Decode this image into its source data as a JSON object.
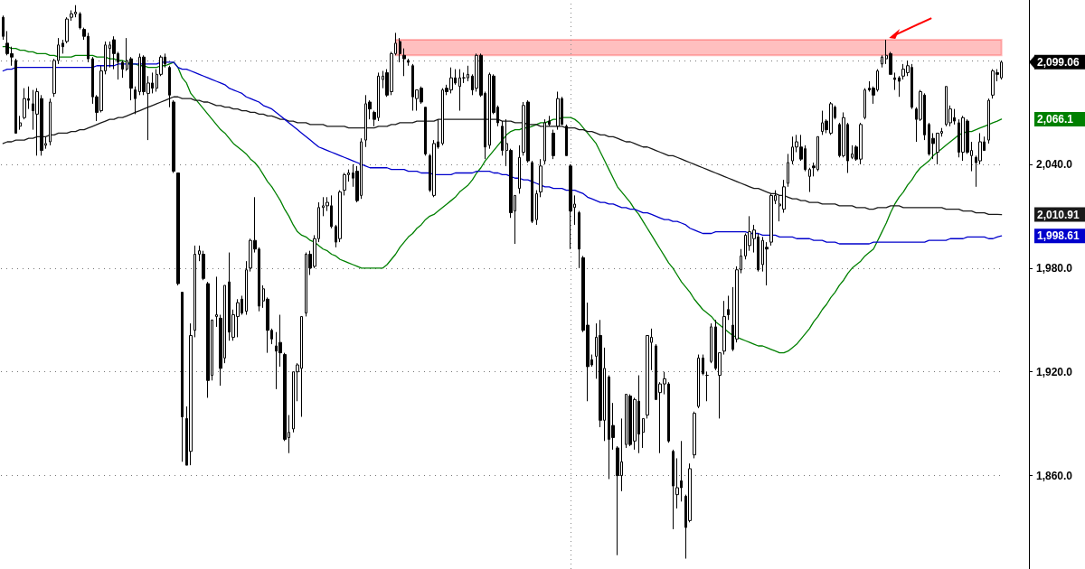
{
  "chart_data": {
    "type": "candlestick",
    "color": "#000000",
    "grid": "y",
    "tick_labels": "y",
    "line_style": "solid",
    "ylim": [
      1806,
      2135
    ],
    "yticks": [
      {
        "value": 1860,
        "label": "1,860.0"
      },
      {
        "value": 1920,
        "label": "1,920.0"
      },
      {
        "value": 1980,
        "label": "1,980.0"
      },
      {
        "value": 2040,
        "label": "2,040.0"
      },
      {
        "value": 2100,
        "label": null
      }
    ],
    "categories": [
      null,
      null,
      null,
      null,
      null,
      null,
      null,
      null,
      null,
      null,
      null,
      null,
      null,
      null,
      null,
      null,
      null,
      null,
      null,
      null,
      null,
      null,
      null,
      null,
      null,
      null,
      null,
      null,
      null,
      null,
      null,
      null,
      null,
      null,
      null,
      null,
      null,
      null,
      null,
      null,
      null,
      null,
      null,
      null,
      null,
      null,
      null,
      null,
      null,
      null,
      null,
      null,
      null,
      null,
      null,
      null,
      null,
      null,
      null,
      null,
      null,
      null,
      null,
      null,
      null,
      null,
      null,
      null,
      null,
      null,
      null,
      null,
      null,
      null,
      null,
      null,
      null,
      null,
      null,
      null,
      null,
      null,
      null,
      null,
      null,
      null,
      null,
      null,
      null,
      null,
      null,
      null,
      null,
      null,
      null,
      null,
      null,
      null,
      null,
      null,
      null,
      null,
      null,
      null,
      null,
      null,
      null,
      null,
      null,
      null,
      null,
      null,
      null,
      null,
      null,
      null,
      null,
      null,
      null,
      null,
      null,
      null,
      null,
      null,
      null,
      null,
      null,
      null,
      null,
      null,
      null,
      null,
      null,
      null,
      null,
      null,
      null,
      null,
      null,
      null,
      null,
      null,
      null,
      null,
      null,
      null,
      null,
      null,
      null,
      null,
      null,
      null,
      null,
      null,
      null,
      null,
      null,
      null,
      null,
      null,
      null,
      null,
      null,
      null,
      null,
      null,
      null,
      null,
      null,
      null,
      null,
      null,
      null,
      null,
      null,
      null,
      null,
      null,
      null,
      null,
      null,
      null,
      null,
      null,
      null,
      null,
      null,
      null,
      null,
      null,
      null,
      null,
      null,
      null,
      null,
      null,
      null,
      null,
      null,
      null,
      null,
      null,
      null,
      null,
      null,
      null,
      null,
      null,
      null,
      null,
      null,
      null,
      null,
      null,
      null,
      null,
      null,
      null,
      null,
      null,
      null,
      null,
      null,
      null,
      null,
      null,
      null,
      null,
      null,
      null,
      null,
      null,
      null,
      null,
      null
    ],
    "ohlc": [
      [
        2125,
        2126,
        2112,
        2114
      ],
      [
        2110,
        2117,
        2103,
        2104
      ],
      [
        2104,
        2108,
        2097,
        2102
      ],
      [
        2100,
        2101,
        2058,
        2058
      ],
      [
        2062,
        2068,
        2060,
        2064
      ],
      [
        2067,
        2084,
        2066,
        2078
      ],
      [
        2078,
        2085,
        2072,
        2077
      ],
      [
        2075,
        2083,
        2060,
        2071
      ],
      [
        2069,
        2084,
        2045,
        2082
      ],
      [
        2078,
        2080,
        2045,
        2048
      ],
      [
        2051,
        2056,
        2049,
        2052
      ],
      [
        2053,
        2078,
        2051,
        2076
      ],
      [
        2081,
        2101,
        2079,
        2100
      ],
      [
        2100,
        2113,
        2098,
        2109
      ],
      [
        2110,
        2112,
        2104,
        2108
      ],
      [
        2111,
        2125,
        2110,
        2124
      ],
      [
        2125,
        2129,
        2123,
        2127
      ],
      [
        2127,
        2132,
        2125,
        2128
      ],
      [
        2127,
        2128,
        2118,
        2119
      ],
      [
        2118,
        2119,
        2112,
        2114
      ],
      [
        2114,
        2116,
        2099,
        2101
      ],
      [
        2101,
        2102,
        2075,
        2079
      ],
      [
        2079,
        2080,
        2065,
        2070
      ],
      [
        2071,
        2097,
        2070,
        2094
      ],
      [
        2094,
        2111,
        2092,
        2109
      ],
      [
        2107,
        2111,
        2096,
        2109
      ],
      [
        2112,
        2114,
        2095,
        2104
      ],
      [
        2104,
        2105,
        2089,
        2099
      ],
      [
        2099,
        2100,
        2090,
        2095
      ],
      [
        2095,
        2113,
        2094,
        2100
      ],
      [
        2101,
        2102,
        2077,
        2084
      ],
      [
        2083,
        2085,
        2069,
        2078
      ],
      [
        2082,
        2104,
        2080,
        2102
      ],
      [
        2102,
        2103,
        2080,
        2082
      ],
      [
        2081,
        2091,
        2054,
        2087
      ],
      [
        2087,
        2093,
        2081,
        2084
      ],
      [
        2084,
        2095,
        2082,
        2092
      ],
      [
        2092,
        2103,
        2091,
        2102
      ],
      [
        2102,
        2104,
        2096,
        2098
      ],
      [
        2096,
        2097,
        2073,
        2080
      ],
      [
        2076,
        2077,
        2035,
        2036
      ],
      [
        2035,
        2035,
        1970,
        1971
      ],
      [
        1966,
        1966,
        1868,
        1894
      ],
      [
        1893,
        1900,
        1866,
        1866
      ],
      [
        1874,
        1948,
        1866,
        1941
      ],
      [
        1944,
        1993,
        1940,
        1988
      ],
      [
        1988,
        1993,
        1984,
        1990
      ],
      [
        1988,
        1990,
        1973,
        1974
      ],
      [
        1971,
        1972,
        1905,
        1915
      ],
      [
        1918,
        1950,
        1915,
        1950
      ],
      [
        1952,
        1975,
        1946,
        1953
      ],
      [
        1951,
        1953,
        1912,
        1922
      ],
      [
        1928,
        1970,
        1925,
        1970
      ],
      [
        1972,
        1989,
        1938,
        1943
      ],
      [
        1940,
        1956,
        1938,
        1953
      ],
      [
        1952,
        1962,
        1940,
        1960
      ],
      [
        1962,
        1964,
        1953,
        1954
      ],
      [
        1955,
        1984,
        1953,
        1979
      ],
      [
        1980,
        1997,
        1978,
        1996
      ],
      [
        1996,
        2021,
        1989,
        1991
      ],
      [
        1991,
        1992,
        1955,
        1958
      ],
      [
        1961,
        1970,
        1957,
        1968
      ],
      [
        1962,
        1963,
        1931,
        1944
      ],
      [
        1944,
        1945,
        1936,
        1939
      ],
      [
        1935,
        1943,
        1910,
        1932
      ],
      [
        1937,
        1953,
        1923,
        1931
      ],
      [
        1930,
        1931,
        1880,
        1881
      ],
      [
        1882,
        1895,
        1873,
        1885
      ],
      [
        1887,
        1920,
        1885,
        1920
      ],
      [
        1920,
        1925,
        1903,
        1924
      ],
      [
        1922,
        1952,
        1894,
        1952
      ],
      [
        1954,
        1989,
        1952,
        1988
      ],
      [
        1988,
        1990,
        1976,
        1980
      ],
      [
        1981,
        1999,
        1980,
        1997
      ],
      [
        1997,
        2018,
        1995,
        2015
      ],
      [
        2015,
        2021,
        2010,
        2016
      ],
      [
        2016,
        2021,
        2013,
        2018
      ],
      [
        2016,
        2022,
        2003,
        2004
      ],
      [
        2004,
        2005,
        1992,
        1995
      ],
      [
        1997,
        2025,
        1995,
        2024
      ],
      [
        2025,
        2035,
        2022,
        2034
      ],
      [
        2034,
        2037,
        2030,
        2035
      ],
      [
        2035,
        2040,
        2027,
        2032
      ],
      [
        2036,
        2039,
        2018,
        2019
      ],
      [
        2022,
        2055,
        2020,
        2053
      ],
      [
        2054,
        2080,
        2050,
        2075
      ],
      [
        2076,
        2077,
        2066,
        2072
      ],
      [
        2070,
        2071,
        2062,
        2066
      ],
      [
        2067,
        2093,
        2065,
        2091
      ],
      [
        2089,
        2094,
        2084,
        2091
      ],
      [
        2093,
        2095,
        2079,
        2080
      ],
      [
        2082,
        2105,
        2080,
        2104
      ],
      [
        2104,
        2116,
        2103,
        2110
      ],
      [
        2111,
        2113,
        2099,
        2104
      ],
      [
        2103,
        2107,
        2091,
        2101
      ],
      [
        2100,
        2101,
        2097,
        2099
      ],
      [
        2097,
        2098,
        2071,
        2079
      ],
      [
        2078,
        2083,
        2071,
        2083
      ],
      [
        2084,
        2085,
        2075,
        2076
      ],
      [
        2073,
        2073,
        2045,
        2046
      ],
      [
        2045,
        2046,
        2024,
        2025
      ],
      [
        2022,
        2054,
        2021,
        2052
      ],
      [
        2053,
        2066,
        2049,
        2050
      ],
      [
        2052,
        2084,
        2051,
        2083
      ],
      [
        2084,
        2086,
        2080,
        2082
      ],
      [
        2083,
        2096,
        2081,
        2090
      ],
      [
        2090,
        2095,
        2086,
        2087
      ],
      [
        2085,
        2095,
        2071,
        2090
      ],
      [
        2090,
        2093,
        2087,
        2090
      ],
      [
        2090,
        2097,
        2088,
        2092
      ],
      [
        2091,
        2092,
        2080,
        2083
      ],
      [
        2084,
        2104,
        2082,
        2103
      ],
      [
        2103,
        2104,
        2079,
        2080
      ],
      [
        2081,
        2082,
        2043,
        2050
      ],
      [
        2051,
        2093,
        2049,
        2092
      ],
      [
        2091,
        2092,
        2069,
        2070
      ],
      [
        2073,
        2074,
        2062,
        2064
      ],
      [
        2062,
        2065,
        2045,
        2048
      ],
      [
        2048,
        2066,
        2039,
        2052
      ],
      [
        2048,
        2049,
        2009,
        2012
      ],
      [
        2013,
        2022,
        1994,
        2022
      ],
      [
        2026,
        2051,
        2023,
        2044
      ],
      [
        2047,
        2076,
        2045,
        2074
      ],
      [
        2076,
        2077,
        2041,
        2042
      ],
      [
        2041,
        2042,
        2006,
        2007
      ],
      [
        2008,
        2025,
        2005,
        2023
      ],
      [
        2024,
        2043,
        2021,
        2039
      ],
      [
        2042,
        2066,
        2040,
        2064
      ],
      [
        2065,
        2068,
        2062,
        2063
      ],
      [
        2058,
        2060,
        2043,
        2045
      ],
      [
        2062,
        2082,
        2060,
        2078
      ],
      [
        2078,
        2079,
        2063,
        2063
      ],
      [
        2062,
        2063,
        2045,
        2045
      ],
      [
        2039,
        2040,
        1991,
        2013
      ],
      [
        2015,
        2022,
        2005,
        2017
      ],
      [
        2012,
        2013,
        1980,
        1991
      ],
      [
        1986,
        1987,
        1943,
        1944
      ],
      [
        1947,
        1960,
        1903,
        1923
      ],
      [
        1927,
        1930,
        1923,
        1924
      ],
      [
        1929,
        1948,
        1916,
        1940
      ],
      [
        1941,
        1950,
        1888,
        1892
      ],
      [
        1892,
        1934,
        1880,
        1922
      ],
      [
        1917,
        1918,
        1858,
        1881
      ],
      [
        1889,
        1902,
        1875,
        1882
      ],
      [
        1876,
        1877,
        1814,
        1860
      ],
      [
        1860,
        1893,
        1851,
        1868
      ],
      [
        1878,
        1907,
        1876,
        1907
      ],
      [
        1906,
        1907,
        1877,
        1878
      ],
      [
        1880,
        1905,
        1875,
        1904
      ],
      [
        1903,
        1918,
        1873,
        1884
      ],
      [
        1885,
        1893,
        1876,
        1893
      ],
      [
        1895,
        1941,
        1893,
        1941
      ],
      [
        1937,
        1945,
        1921,
        1940
      ],
      [
        1935,
        1936,
        1904,
        1904
      ],
      [
        1908,
        1914,
        1873,
        1913
      ],
      [
        1913,
        1920,
        1907,
        1916
      ],
      [
        1913,
        1914,
        1879,
        1880
      ],
      [
        1874,
        1875,
        1829,
        1854
      ],
      [
        1849,
        1870,
        1841,
        1853
      ],
      [
        1857,
        1880,
        1845,
        1853
      ],
      [
        1848,
        1849,
        1812,
        1830
      ],
      [
        1834,
        1867,
        1833,
        1864
      ],
      [
        1872,
        1897,
        1870,
        1896
      ],
      [
        1900,
        1930,
        1899,
        1928
      ],
      [
        1928,
        1930,
        1918,
        1919
      ],
      [
        1918,
        1920,
        1903,
        1918
      ],
      [
        1926,
        1948,
        1925,
        1946
      ],
      [
        1946,
        1950,
        1921,
        1922
      ],
      [
        1918,
        1931,
        1893,
        1931
      ],
      [
        1932,
        1961,
        1930,
        1952
      ],
      [
        1956,
        1964,
        1950,
        1953
      ],
      [
        1947,
        1969,
        1932,
        1933
      ],
      [
        1939,
        1981,
        1937,
        1979
      ],
      [
        1979,
        1991,
        1977,
        1987
      ],
      [
        1987,
        2000,
        1985,
        1999
      ],
      [
        1993,
        2010,
        1990,
        2001
      ],
      [
        1997,
        2005,
        1989,
        2002
      ],
      [
        1998,
        2000,
        1978,
        1979
      ],
      [
        1982,
        1998,
        1978,
        1996
      ],
      [
        1992,
        1995,
        1970,
        1991
      ],
      [
        1995,
        2023,
        1993,
        2022
      ],
      [
        2019,
        2025,
        2017,
        2022
      ],
      [
        2016,
        2022,
        2007,
        2017
      ],
      [
        2014,
        2031,
        2012,
        2027
      ],
      [
        2029,
        2046,
        2027,
        2041
      ],
      [
        2042,
        2056,
        2040,
        2050
      ],
      [
        2050,
        2057,
        2047,
        2053
      ],
      [
        2050,
        2057,
        2042,
        2043
      ],
      [
        2049,
        2051,
        2036,
        2037
      ],
      [
        2033,
        2038,
        2024,
        2037
      ],
      [
        2039,
        2041,
        2033,
        2038
      ],
      [
        2037,
        2056,
        2036,
        2056
      ],
      [
        2059,
        2071,
        2057,
        2064
      ],
      [
        2065,
        2066,
        2058,
        2060
      ],
      [
        2058,
        2076,
        2057,
        2075
      ],
      [
        2073,
        2074,
        2066,
        2067
      ],
      [
        2063,
        2064,
        2044,
        2045
      ],
      [
        2045,
        2070,
        2044,
        2067
      ],
      [
        2063,
        2064,
        2035,
        2042
      ],
      [
        2044,
        2051,
        2043,
        2046
      ],
      [
        2050,
        2051,
        2042,
        2043
      ],
      [
        2043,
        2064,
        2040,
        2063
      ],
      [
        2067,
        2084,
        2066,
        2083
      ],
      [
        2084,
        2088,
        2082,
        2083
      ],
      [
        2084,
        2085,
        2075,
        2080
      ],
      [
        2083,
        2095,
        2082,
        2094
      ],
      [
        2098,
        2103,
        2096,
        2102
      ],
      [
        2101,
        2112,
        2098,
        2103
      ],
      [
        2104,
        2105,
        2092,
        2092
      ],
      [
        2090,
        2093,
        2083,
        2089
      ],
      [
        2090,
        2091,
        2079,
        2088
      ],
      [
        2091,
        2098,
        2089,
        2095
      ],
      [
        2093,
        2100,
        2091,
        2097
      ],
      [
        2096,
        2098,
        2072,
        2073
      ],
      [
        2072,
        2073,
        2053,
        2066
      ],
      [
        2066,
        2083,
        2065,
        2082
      ],
      [
        2080,
        2081,
        2054,
        2057
      ],
      [
        2063,
        2064,
        2045,
        2046
      ],
      [
        2055,
        2058,
        2043,
        2052
      ],
      [
        2047,
        2058,
        2040,
        2058
      ],
      [
        2058,
        2061,
        2056,
        2059
      ],
      [
        2063,
        2085,
        2062,
        2085
      ],
      [
        2064,
        2074,
        2062,
        2072
      ],
      [
        2067,
        2072,
        2063,
        2065
      ],
      [
        2064,
        2066,
        2044,
        2047
      ],
      [
        2047,
        2068,
        2042,
        2067
      ],
      [
        2065,
        2066,
        2046,
        2047
      ],
      [
        2045,
        2053,
        2036,
        2048
      ],
      [
        2044,
        2045,
        2027,
        2041
      ],
      [
        2042,
        2058,
        2040,
        2053
      ],
      [
        2053,
        2056,
        2048,
        2048
      ],
      [
        2054,
        2078,
        2052,
        2077
      ],
      [
        2080,
        2095,
        2078,
        2094
      ],
      [
        2093,
        2095,
        2088,
        2092
      ],
      [
        2090,
        2100,
        2089,
        2099.06
      ]
    ],
    "series": [
      {
        "type": "line",
        "color": "#008000",
        "values": [
          2108,
          2108,
          2107,
          2107,
          2106,
          2106,
          2105,
          2105,
          2104,
          2104,
          2104,
          2103,
          2103,
          2102,
          2102,
          2102,
          2102,
          2103,
          2103,
          2103,
          2103,
          2103,
          2102,
          2102,
          2102,
          2101,
          2101,
          2100,
          2100,
          2099,
          2098,
          2098,
          2097,
          2097,
          2096,
          2096,
          2096,
          2097,
          2097,
          2098,
          2099,
          2096,
          2090,
          2087,
          2081,
          2078,
          2075,
          2072,
          2069,
          2066,
          2063,
          2060,
          2058,
          2055,
          2052,
          2050,
          2048,
          2046,
          2043,
          2041,
          2038,
          2034,
          2030,
          2027,
          2023,
          2019,
          2014,
          2010,
          2005,
          2001,
          1999,
          1998,
          1996,
          1995,
          1993,
          1991,
          1990,
          1988,
          1987,
          1985,
          1984,
          1983,
          1982,
          1981,
          1980,
          1980,
          1980,
          1980,
          1980,
          1980,
          1982,
          1985,
          1988,
          1992,
          1995,
          1998,
          2000,
          2003,
          2005,
          2008,
          2010,
          2011,
          2013,
          2015,
          2017,
          2019,
          2021,
          2024,
          2026,
          2028,
          2031,
          2035,
          2038,
          2042,
          2045,
          2048,
          2051,
          2054,
          2057,
          2059,
          2060,
          2060,
          2061,
          2061,
          2062,
          2063,
          2064,
          2064,
          2065,
          2066,
          2066,
          2067,
          2067,
          2067,
          2066,
          2064,
          2061,
          2058,
          2055,
          2052,
          2047,
          2042,
          2037,
          2032,
          2027,
          2024,
          2021,
          2018,
          2014,
          2011,
          2007,
          2003,
          1999,
          1995,
          1991,
          1987,
          1983,
          1980,
          1976,
          1972,
          1969,
          1966,
          1962,
          1959,
          1956,
          1954,
          1952,
          1949,
          1947,
          1945,
          1943,
          1941,
          1940,
          1939,
          1938,
          1937,
          1936,
          1935,
          1935,
          1934,
          1933,
          1932,
          1931,
          1931,
          1932,
          1934,
          1936,
          1939,
          1942,
          1945,
          1949,
          1952,
          1956,
          1959,
          1963,
          1966,
          1970,
          1973,
          1977,
          1980,
          1982,
          1984,
          1987,
          1989,
          1991,
          1996,
          2001,
          2006,
          2012,
          2017,
          2021,
          2024,
          2028,
          2031,
          2035,
          2038,
          2040,
          2042,
          2045,
          2047,
          2049,
          2051,
          2053,
          2055,
          2057,
          2058,
          2059,
          2059,
          2060,
          2061,
          2062,
          2063,
          2064,
          2065,
          2066.1
        ]
      },
      {
        "type": "line",
        "color": "#1a1a1a",
        "values": [
          2052,
          2053,
          2053,
          2054,
          2054,
          2054,
          2055,
          2055,
          2056,
          2056,
          2056,
          2057,
          2057,
          2058,
          2058,
          2058,
          2059,
          2059,
          2060,
          2060,
          2061,
          2062,
          2063,
          2064,
          2065,
          2066,
          2066,
          2067,
          2067,
          2068,
          2069,
          2070,
          2071,
          2072,
          2073,
          2074,
          2075,
          2076,
          2077,
          2078,
          2079,
          2079,
          2078,
          2078,
          2078,
          2077,
          2077,
          2076,
          2076,
          2075,
          2074,
          2074,
          2073,
          2073,
          2072,
          2072,
          2071,
          2071,
          2070,
          2070,
          2069,
          2069,
          2068,
          2068,
          2067,
          2066,
          2066,
          2065,
          2065,
          2064,
          2064,
          2064,
          2063,
          2063,
          2063,
          2063,
          2062,
          2062,
          2062,
          2062,
          2062,
          2061,
          2061,
          2061,
          2061,
          2061,
          2061,
          2061,
          2062,
          2062,
          2062,
          2063,
          2063,
          2064,
          2064,
          2064,
          2064,
          2065,
          2065,
          2065,
          2065,
          2065,
          2066,
          2066,
          2066,
          2066,
          2066,
          2066,
          2066,
          2066,
          2066,
          2066,
          2066,
          2066,
          2066,
          2066,
          2066,
          2065,
          2065,
          2065,
          2064,
          2064,
          2064,
          2063,
          2063,
          2063,
          2062,
          2062,
          2062,
          2062,
          2062,
          2062,
          2061,
          2061,
          2061,
          2060,
          2060,
          2059,
          2059,
          2058,
          2057,
          2057,
          2056,
          2056,
          2055,
          2054,
          2053,
          2053,
          2052,
          2051,
          2050,
          2050,
          2049,
          2048,
          2047,
          2046,
          2045,
          2045,
          2044,
          2043,
          2042,
          2041,
          2040,
          2039,
          2038,
          2037,
          2036,
          2035,
          2034,
          2033,
          2032,
          2031,
          2030,
          2029,
          2028,
          2027,
          2026,
          2026,
          2025,
          2024,
          2023,
          2023,
          2022,
          2022,
          2021,
          2020,
          2020,
          2019,
          2019,
          2018,
          2018,
          2018,
          2017,
          2017,
          2017,
          2017,
          2016,
          2016,
          2016,
          2016,
          2015,
          2015,
          2015,
          2014,
          2014,
          2015,
          2015,
          2015,
          2016,
          2016,
          2016,
          2015,
          2015,
          2015,
          2015,
          2015,
          2015,
          2015,
          2015,
          2015,
          2015,
          2014,
          2014,
          2014,
          2014,
          2013,
          2013,
          2013,
          2012,
          2012,
          2012,
          2011,
          2011,
          2011,
          2010.91
        ]
      },
      {
        "type": "line",
        "color": "#0000cc",
        "values": [
          2094,
          2095,
          2095,
          2096,
          2096,
          2096,
          2096,
          2096,
          2096,
          2096,
          2096,
          2096,
          2096,
          2096,
          2096,
          2096,
          2096,
          2096,
          2096,
          2096,
          2096,
          2096,
          2097,
          2097,
          2097,
          2097,
          2097,
          2098,
          2098,
          2098,
          2098,
          2098,
          2098,
          2098,
          2098,
          2098,
          2098,
          2099,
          2099,
          2099,
          2099,
          2096,
          2095,
          2095,
          2094,
          2093,
          2092,
          2091,
          2090,
          2089,
          2088,
          2087,
          2086,
          2084,
          2083,
          2082,
          2081,
          2079,
          2078,
          2077,
          2076,
          2074,
          2073,
          2072,
          2070,
          2068,
          2066,
          2064,
          2062,
          2060,
          2058,
          2056,
          2054,
          2052,
          2050,
          2049,
          2048,
          2047,
          2046,
          2045,
          2044,
          2043,
          2042,
          2041,
          2040,
          2039,
          2038,
          2038,
          2038,
          2038,
          2038,
          2037,
          2037,
          2037,
          2037,
          2036,
          2036,
          2036,
          2035,
          2035,
          2035,
          2034,
          2034,
          2034,
          2034,
          2034,
          2035,
          2035,
          2035,
          2035,
          2035,
          2036,
          2036,
          2036,
          2036,
          2035,
          2035,
          2034,
          2034,
          2033,
          2032,
          2032,
          2031,
          2031,
          2030,
          2029,
          2028,
          2027,
          2027,
          2026,
          2026,
          2026,
          2025,
          2025,
          2025,
          2024,
          2023,
          2021,
          2020,
          2019,
          2018,
          2018,
          2017,
          2017,
          2016,
          2015,
          2015,
          2014,
          2014,
          2013,
          2012,
          2012,
          2011,
          2010,
          2009,
          2008,
          2008,
          2007,
          2007,
          2006,
          2005,
          2003,
          2002,
          2001,
          2000,
          2000,
          2000,
          2001,
          2001,
          2001,
          2001,
          2001,
          2001,
          2001,
          2001,
          2000,
          2000,
          2000,
          1999,
          1999,
          1999,
          1999,
          1998,
          1998,
          1998,
          1998,
          1997,
          1997,
          1997,
          1997,
          1996,
          1996,
          1996,
          1995,
          1995,
          1995,
          1994,
          1994,
          1994,
          1994,
          1994,
          1994,
          1994,
          1994,
          1995,
          1995,
          1995,
          1995,
          1995,
          1995,
          1995,
          1995,
          1995,
          1995,
          1995,
          1995,
          1995,
          1996,
          1996,
          1996,
          1996,
          1996,
          1997,
          1997,
          1997,
          1997,
          1998,
          1998,
          1998,
          1998,
          1998,
          1997,
          1997,
          1998,
          1998.61
        ]
      }
    ],
    "bands": [
      {
        "axis": "y",
        "from": 2103,
        "to": 2112,
        "color": "#ff0000"
      }
    ],
    "annotations": [
      "2,099.06",
      "2,066.1",
      "2,010.91",
      "1,998.61"
    ]
  }
}
